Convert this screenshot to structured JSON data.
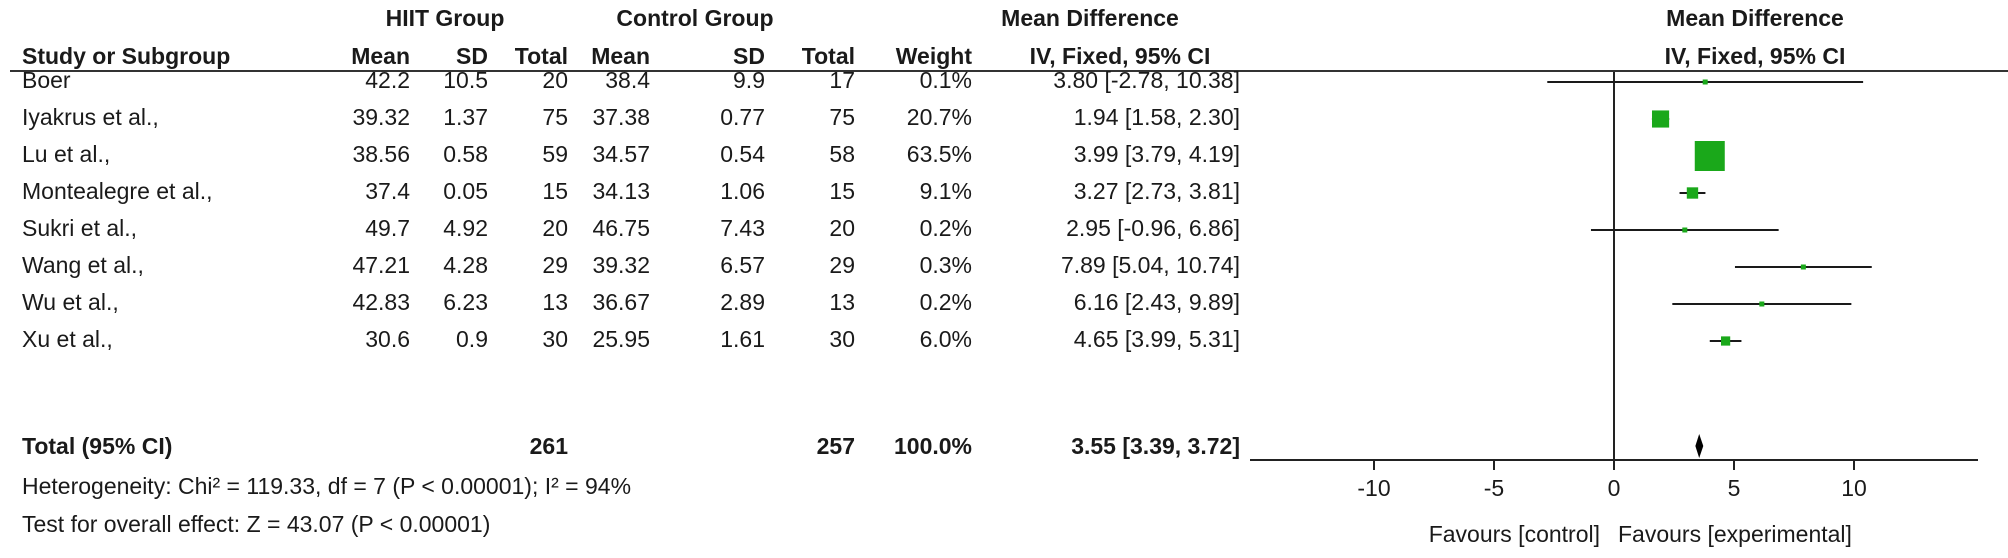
{
  "headers": {
    "group1": "HIIT Group",
    "group2": "Control Group",
    "md_left": "Mean Difference",
    "md_right": "Mean Difference",
    "study": "Study or Subgroup",
    "mean1": "Mean",
    "sd1": "SD",
    "total1": "Total",
    "mean2": "Mean",
    "sd2": "SD",
    "total2": "Total",
    "weight": "Weight",
    "method_left": "IV, Fixed, 95% CI",
    "method_right": "IV, Fixed, 95% CI"
  },
  "studies": [
    {
      "name": "Boer",
      "mean1": "42.2",
      "sd1": "10.5",
      "total1": "20",
      "mean2": "38.4",
      "sd2": "9.9",
      "total2": "17",
      "weight": "0.1%",
      "ci": "3.80 [-2.78, 10.38]"
    },
    {
      "name": "Iyakrus et al.,",
      "mean1": "39.32",
      "sd1": "1.37",
      "total1": "75",
      "mean2": "37.38",
      "sd2": "0.77",
      "total2": "75",
      "weight": "20.7%",
      "ci": "1.94 [1.58, 2.30]"
    },
    {
      "name": "Lu et al.,",
      "mean1": "38.56",
      "sd1": "0.58",
      "total1": "59",
      "mean2": "34.57",
      "sd2": "0.54",
      "total2": "58",
      "weight": "63.5%",
      "ci": "3.99 [3.79, 4.19]"
    },
    {
      "name": "Montealegre et al.,",
      "mean1": "37.4",
      "sd1": "0.05",
      "total1": "15",
      "mean2": "34.13",
      "sd2": "1.06",
      "total2": "15",
      "weight": "9.1%",
      "ci": "3.27 [2.73, 3.81]"
    },
    {
      "name": "Sukri et al.,",
      "mean1": "49.7",
      "sd1": "4.92",
      "total1": "20",
      "mean2": "46.75",
      "sd2": "7.43",
      "total2": "20",
      "weight": "0.2%",
      "ci": "2.95 [-0.96, 6.86]"
    },
    {
      "name": "Wang et al.,",
      "mean1": "47.21",
      "sd1": "4.28",
      "total1": "29",
      "mean2": "39.32",
      "sd2": "6.57",
      "total2": "29",
      "weight": "0.3%",
      "ci": "7.89 [5.04, 10.74]"
    },
    {
      "name": "Wu et al.,",
      "mean1": "42.83",
      "sd1": "6.23",
      "total1": "13",
      "mean2": "36.67",
      "sd2": "2.89",
      "total2": "13",
      "weight": "0.2%",
      "ci": "6.16 [2.43, 9.89]"
    },
    {
      "name": "Xu et al.,",
      "mean1": "30.6",
      "sd1": "0.9",
      "total1": "30",
      "mean2": "25.95",
      "sd2": "1.61",
      "total2": "30",
      "weight": "6.0%",
      "ci": "4.65 [3.99, 5.31]"
    }
  ],
  "total": {
    "name": "Total (95% CI)",
    "total1": "261",
    "total2": "257",
    "weight": "100.0%",
    "ci": "3.55 [3.39, 3.72]"
  },
  "footer": {
    "heterogeneity": "Heterogeneity: Chi² = 119.33, df = 7 (P < 0.00001); I² = 94%",
    "overall": "Test for overall effect: Z = 43.07 (P < 0.00001)",
    "favours_left": "Favours [control]",
    "favours_right": "Favours [experimental]"
  },
  "chart_data": {
    "type": "forest",
    "xlim": [
      -10,
      10
    ],
    "ticks": [
      {
        "value": -10,
        "label": "-10"
      },
      {
        "value": -5,
        "label": "-5"
      },
      {
        "value": 0,
        "label": "0"
      },
      {
        "value": 5,
        "label": "5"
      },
      {
        "value": 10,
        "label": "10"
      }
    ],
    "marker_color": "#1aa81a",
    "points": [
      {
        "md": 3.8,
        "lo": -2.78,
        "hi": 10.38,
        "weight": 0.1
      },
      {
        "md": 1.94,
        "lo": 1.58,
        "hi": 2.3,
        "weight": 20.7
      },
      {
        "md": 3.99,
        "lo": 3.79,
        "hi": 4.19,
        "weight": 63.5
      },
      {
        "md": 3.27,
        "lo": 2.73,
        "hi": 3.81,
        "weight": 9.1
      },
      {
        "md": 2.95,
        "lo": -0.96,
        "hi": 6.86,
        "weight": 0.2
      },
      {
        "md": 7.89,
        "lo": 5.04,
        "hi": 10.74,
        "weight": 0.3
      },
      {
        "md": 6.16,
        "lo": 2.43,
        "hi": 9.89,
        "weight": 0.2
      },
      {
        "md": 4.65,
        "lo": 3.99,
        "hi": 5.31,
        "weight": 6.0
      }
    ],
    "overall": {
      "md": 3.55,
      "lo": 3.39,
      "hi": 3.72
    }
  }
}
